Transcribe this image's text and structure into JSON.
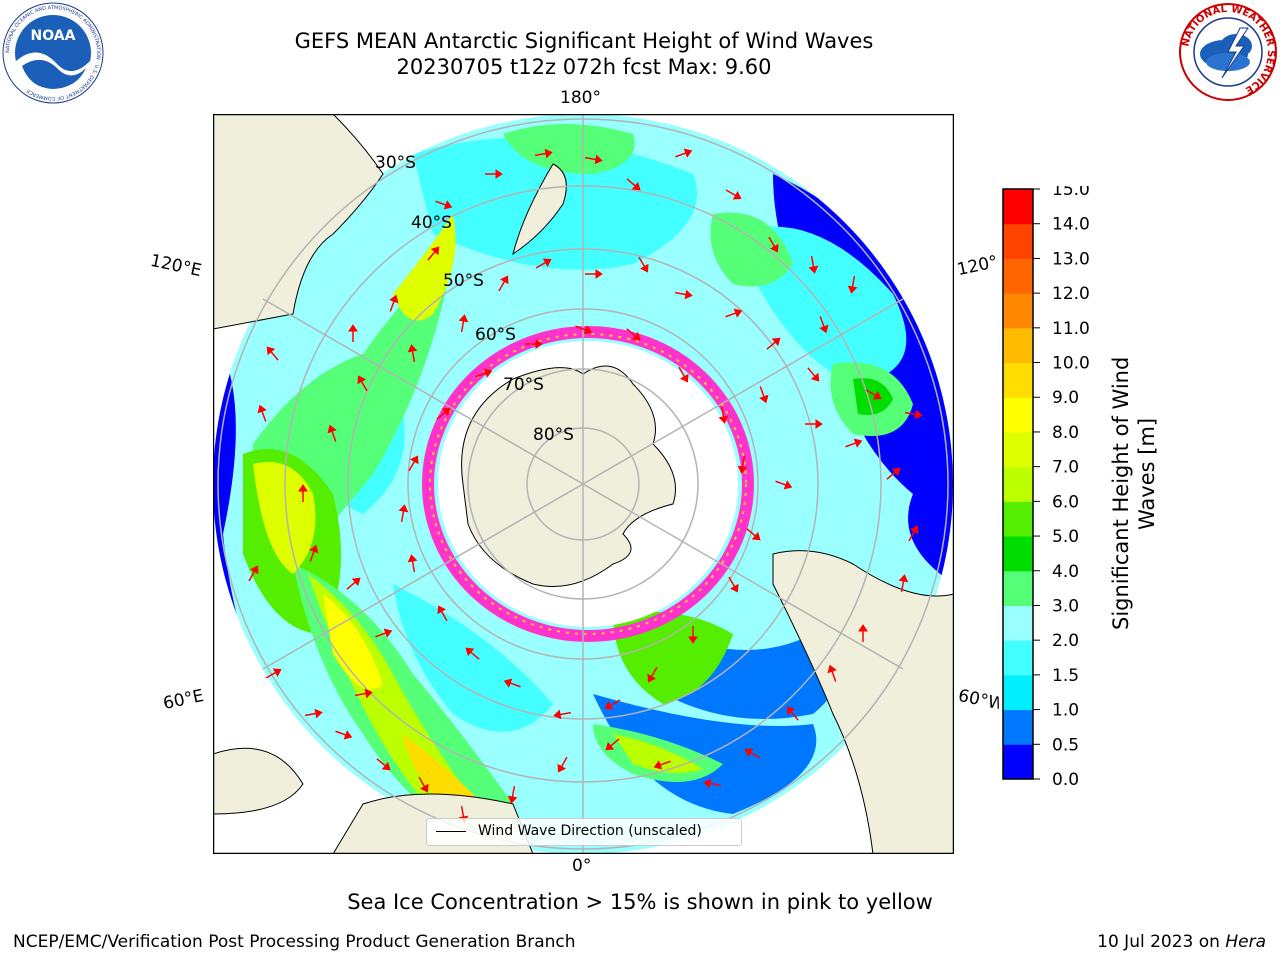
{
  "header": {
    "title_line1": "GEFS MEAN Antarctic Significant Height of Wind Waves",
    "title_line2": "20230705 t12z 072h fcst   Max: 9.60"
  },
  "logos": {
    "left": {
      "icon": "noaa-logo-icon",
      "text": "NOAA",
      "ring_text": "NATIONAL OCEANIC AND ATMOSPHERIC ADMINISTRATION · U.S. DEPARTMENT OF COMMERCE"
    },
    "right": {
      "icon": "nws-logo-icon",
      "ring_text": "NATIONAL WEATHER SERVICE"
    }
  },
  "map": {
    "projection": "south-polar-stereographic",
    "latitude_labels": [
      "30°S",
      "40°S",
      "50°S",
      "60°S",
      "70°S",
      "80°S"
    ],
    "longitude_labels": {
      "top": "180°",
      "bottom": "0°",
      "upper_left": "120°E",
      "lower_left": "60°E",
      "upper_right": "120°",
      "lower_right": "60°W"
    },
    "legend_label": "Wind Wave Direction (unscaled)",
    "arrow_color": "#ff0000",
    "land_color": "#efefdc",
    "ice_edge_colors": [
      "#ff33cc",
      "#ff99ff",
      "#ffcc33"
    ]
  },
  "colorbar": {
    "label_line1": "Significant Height of Wind",
    "label_line2": "Waves [m]",
    "ticks": [
      "0.0",
      "0.5",
      "1.0",
      "1.5",
      "2.0",
      "3.0",
      "4.0",
      "5.0",
      "6.0",
      "7.0",
      "8.0",
      "9.0",
      "10.0",
      "11.0",
      "12.0",
      "13.0",
      "14.0",
      "15.0"
    ],
    "colors": [
      "#0000ff",
      "#0077ff",
      "#00eeff",
      "#44ffff",
      "#99ffff",
      "#55ff77",
      "#00dd00",
      "#55ee00",
      "#bbff00",
      "#ddff00",
      "#ffff00",
      "#ffdd00",
      "#ffbb00",
      "#ff8800",
      "#ff6600",
      "#ff4400",
      "#ff0000"
    ]
  },
  "caption": "Sea Ice Concentration > 15% is shown in pink to yellow",
  "footer": {
    "left": "NCEP/EMC/Verification Post Processing Product Generation Branch",
    "right_prefix": "10 Jul 2023 on ",
    "right_machine": "Hera"
  }
}
